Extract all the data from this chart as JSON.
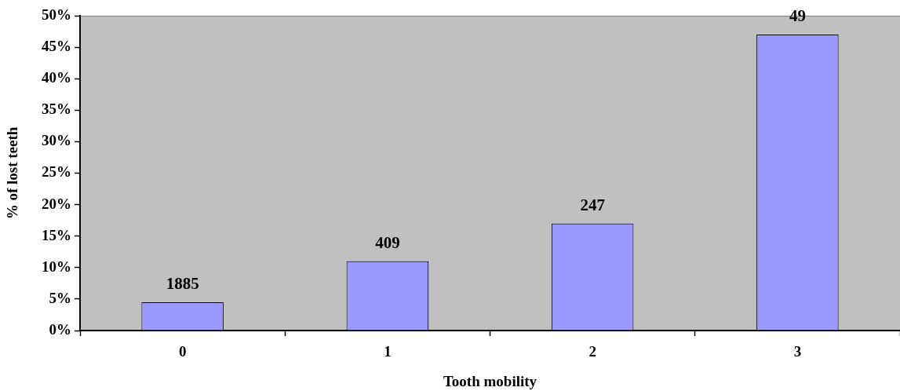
{
  "chart_data": {
    "type": "bar",
    "xlabel": "Tooth mobility",
    "ylabel": "% of lost teeth",
    "categories": [
      "0",
      "1",
      "2",
      "3"
    ],
    "values": [
      4.5,
      11,
      17,
      47
    ],
    "color": "#9999ff",
    "annotations": [
      {
        "text": "1885",
        "x": "0",
        "y": 4.5
      },
      {
        "text": "409",
        "x": "1",
        "y": 11
      },
      {
        "text": "247",
        "x": "2",
        "y": 17
      },
      {
        "text": "49",
        "x": "3",
        "y": 47
      }
    ],
    "ylim": [
      0,
      50
    ],
    "yticks": [
      {
        "value": 0,
        "label": "0%"
      },
      {
        "value": 5,
        "label": "5%"
      },
      {
        "value": 10,
        "label": "10%"
      },
      {
        "value": 15,
        "label": "15%"
      },
      {
        "value": 20,
        "label": "20%"
      },
      {
        "value": 25,
        "label": "25%"
      },
      {
        "value": 30,
        "label": "30%"
      },
      {
        "value": 35,
        "label": "35%"
      },
      {
        "value": 40,
        "label": "40%"
      },
      {
        "value": 45,
        "label": "45%"
      },
      {
        "value": 50,
        "label": "50%"
      }
    ],
    "legend": false
  }
}
